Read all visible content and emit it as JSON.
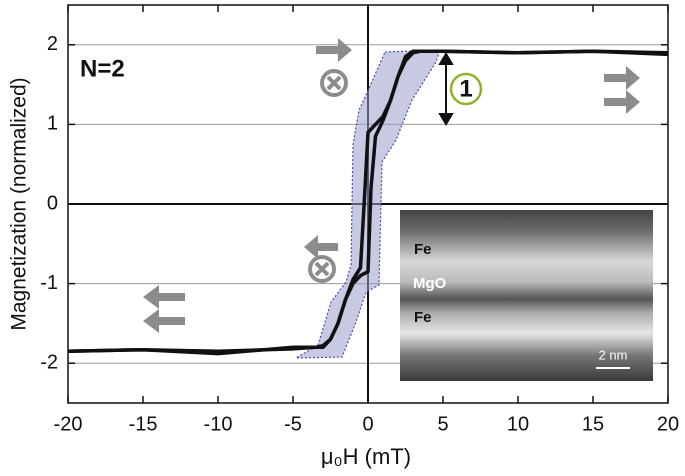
{
  "chart_data": {
    "type": "line",
    "ylabel": "Magnetization (normalized)",
    "xlabel": "μ₀H (mT)",
    "xlim": [
      -20,
      20
    ],
    "xticks": [
      -20,
      -15,
      -10,
      -5,
      0,
      5,
      10,
      15,
      20
    ],
    "ylim": [
      -2.5,
      2.5
    ],
    "yticks": [
      -2,
      -1,
      0,
      1,
      2
    ],
    "grid": true,
    "series": [
      {
        "color": "#111111",
        "x": [
          20,
          15,
          10,
          5,
          3,
          2.5,
          2,
          1.5,
          1,
          0.5,
          0,
          -0.2,
          -0.5,
          -1,
          -1.5,
          -2,
          -2.5,
          -3,
          -3.5,
          -5,
          -10,
          -15,
          -20
        ],
        "values": [
          1.9,
          1.92,
          1.9,
          1.92,
          1.92,
          1.85,
          1.6,
          1.3,
          1.1,
          1.0,
          0.9,
          0.2,
          -0.8,
          -0.95,
          -1.2,
          -1.5,
          -1.7,
          -1.78,
          -1.8,
          -1.82,
          -1.85,
          -1.83,
          -1.85
        ]
      },
      {
        "color": "#111111",
        "x": [
          -20,
          -15,
          -10,
          -5,
          -3,
          -2.5,
          -2,
          -1.5,
          -1,
          -0.5,
          0,
          0.2,
          0.5,
          1,
          1.5,
          2,
          2.5,
          3,
          3.5,
          5,
          10,
          15,
          20
        ],
        "values": [
          -1.85,
          -1.83,
          -1.88,
          -1.8,
          -1.8,
          -1.7,
          -1.5,
          -1.2,
          -1.0,
          -0.9,
          -0.85,
          0.2,
          0.85,
          1.05,
          1.3,
          1.6,
          1.8,
          1.9,
          1.92,
          1.92,
          1.9,
          1.92,
          1.88
        ]
      }
    ],
    "annotations": [
      "N=2",
      "1"
    ],
    "inset": {
      "labels": [
        "Fe",
        "MgO",
        "Fe"
      ],
      "scale_bar": "2 nm"
    }
  }
}
